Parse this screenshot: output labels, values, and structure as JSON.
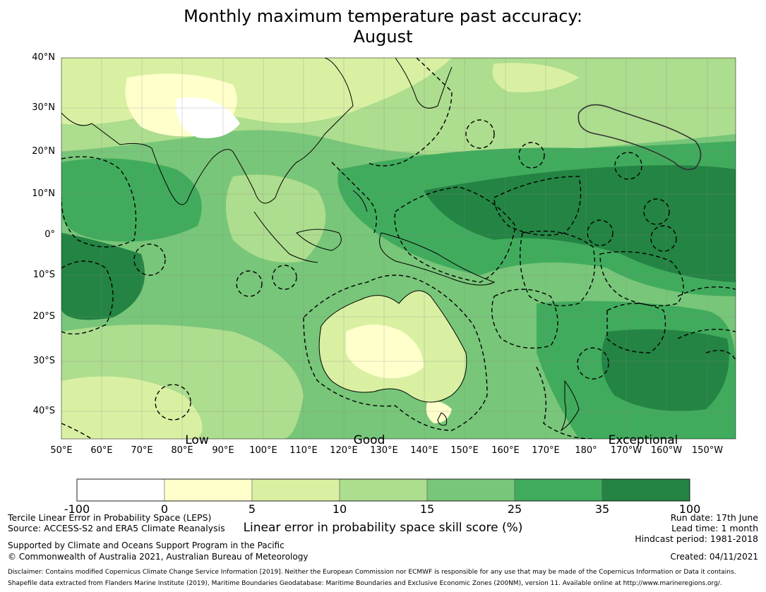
{
  "title_line1": "Monthly maximum temperature past accuracy:",
  "title_line2": "August",
  "map": {
    "lat_labels": [
      "40°N",
      "30°N",
      "20°N",
      "10°N",
      "0°",
      "10°S",
      "20°S",
      "30°S",
      "40°S"
    ],
    "lon_labels": [
      "50°E",
      "60°E",
      "70°E",
      "80°E",
      "90°E",
      "100°E",
      "110°E",
      "120°E",
      "130°E",
      "140°E",
      "150°E",
      "160°E",
      "170°E",
      "180°",
      "170°W",
      "160°W",
      "150°W"
    ],
    "quality_labels": [
      "Low",
      "Good",
      "Exceptional"
    ]
  },
  "colorbar": {
    "ticks": [
      "-100",
      "0",
      "5",
      "10",
      "15",
      "25",
      "35",
      "100"
    ],
    "colors": [
      "#ffffff",
      "#ffffcc",
      "#d9f0a3",
      "#addd8e",
      "#78c679",
      "#41ab5d",
      "#238443"
    ],
    "title": "Linear error in probability space skill score (%)"
  },
  "footer": {
    "left1": "Tercile Linear Error in Probability Space (LEPS)",
    "left2": "Source: ACCESS-S2 and ERA5 Climate Reanalysis",
    "left3": "Supported by Climate and Oceans Support Program in the Pacific",
    "left4": "© Commonwealth of Australia 2021, Australian Bureau of Meteorology",
    "right1": "Run date: 17th June",
    "right2": "Lead time: 1 month",
    "right3": "Hindcast period: 1981-2018",
    "created": "Created: 04/11/2021",
    "disclaimer": "Disclaimer: Contains modified Copernicus Climate Change Service Information [2019]. Neither the European Commission nor ECMWF is responsible for any use that may be made of the Copernicus Information or Data it contains.",
    "shapefile": "Shapefile data extracted from Flanders Marine Institute (2019), Maritime Boundaries Geodatabase: Maritime Boundaries and Exclusive Economic Zones (200NM), version 11. Available online at http://www.marineregions.org/."
  }
}
